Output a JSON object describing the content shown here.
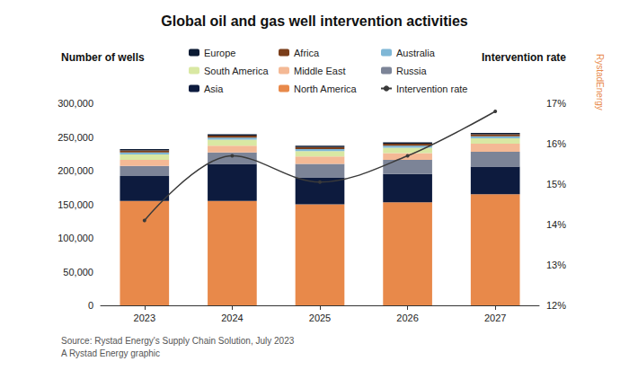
{
  "chart_data": {
    "type": "bar",
    "title": "Global oil and gas well intervention activities",
    "y_label": "Number of wells",
    "y2_label": "Intervention rate",
    "annotations": [
      "Source: Rystad Energy's Supply Chain Solution, July 2023",
      "A Rystad Energy graphic",
      "RystadEnergy"
    ],
    "categories": [
      "2023",
      "2024",
      "2025",
      "2026",
      "2027"
    ],
    "stacked": true,
    "grid": false,
    "series": [
      {
        "name": "Europe",
        "color": "#0b1a33",
        "values": [
          2000,
          2000,
          2000,
          2000,
          2000
        ]
      },
      {
        "name": "Africa",
        "color": "#7a3e1a",
        "values": [
          3000,
          3000,
          3000,
          3000,
          3000
        ]
      },
      {
        "name": "Australia",
        "color": "#7fb7d6",
        "values": [
          3000,
          3000,
          3000,
          3000,
          3000
        ]
      },
      {
        "name": "South America",
        "color": "#d9e8a3",
        "values": [
          8000,
          9000,
          8000,
          8000,
          8000
        ]
      },
      {
        "name": "Middle East",
        "color": "#f4b995",
        "values": [
          9000,
          10000,
          11000,
          10000,
          12000
        ]
      },
      {
        "name": "Russia",
        "color": "#7c8497",
        "values": [
          15000,
          17000,
          20000,
          21000,
          22000
        ]
      },
      {
        "name": "Asia",
        "color": "#0d1b3e",
        "values": [
          37000,
          55000,
          40000,
          42000,
          41000
        ]
      },
      {
        "name": "North America",
        "color": "#e8894a",
        "values": [
          155000,
          155000,
          150000,
          153000,
          165000
        ]
      },
      {
        "name": "Intervention rate",
        "type": "line",
        "axis": "y2",
        "color": "#3a3a3a",
        "marker": "circle",
        "values": [
          14.1,
          15.7,
          15.05,
          15.7,
          16.8
        ]
      }
    ],
    "ylim": [
      0,
      300000
    ],
    "yticks": [
      0,
      {
        "value": 50000,
        "label": "50,000"
      },
      {
        "value": 100000,
        "label": "100,000"
      },
      {
        "value": 150000,
        "label": "150,000"
      },
      {
        "value": 200000,
        "label": "200,000"
      },
      {
        "value": 250000,
        "label": "250,000"
      },
      {
        "value": 300000,
        "label": "300,000"
      }
    ],
    "y2lim": [
      12,
      17
    ],
    "y2ticks": [
      {
        "value": 12,
        "label": "12%"
      },
      {
        "value": 13,
        "label": "13%"
      },
      {
        "value": 14,
        "label": "14%"
      },
      {
        "value": 15,
        "label": "15%"
      },
      {
        "value": 16,
        "label": "16%"
      },
      {
        "value": 17,
        "label": "17%"
      }
    ]
  }
}
